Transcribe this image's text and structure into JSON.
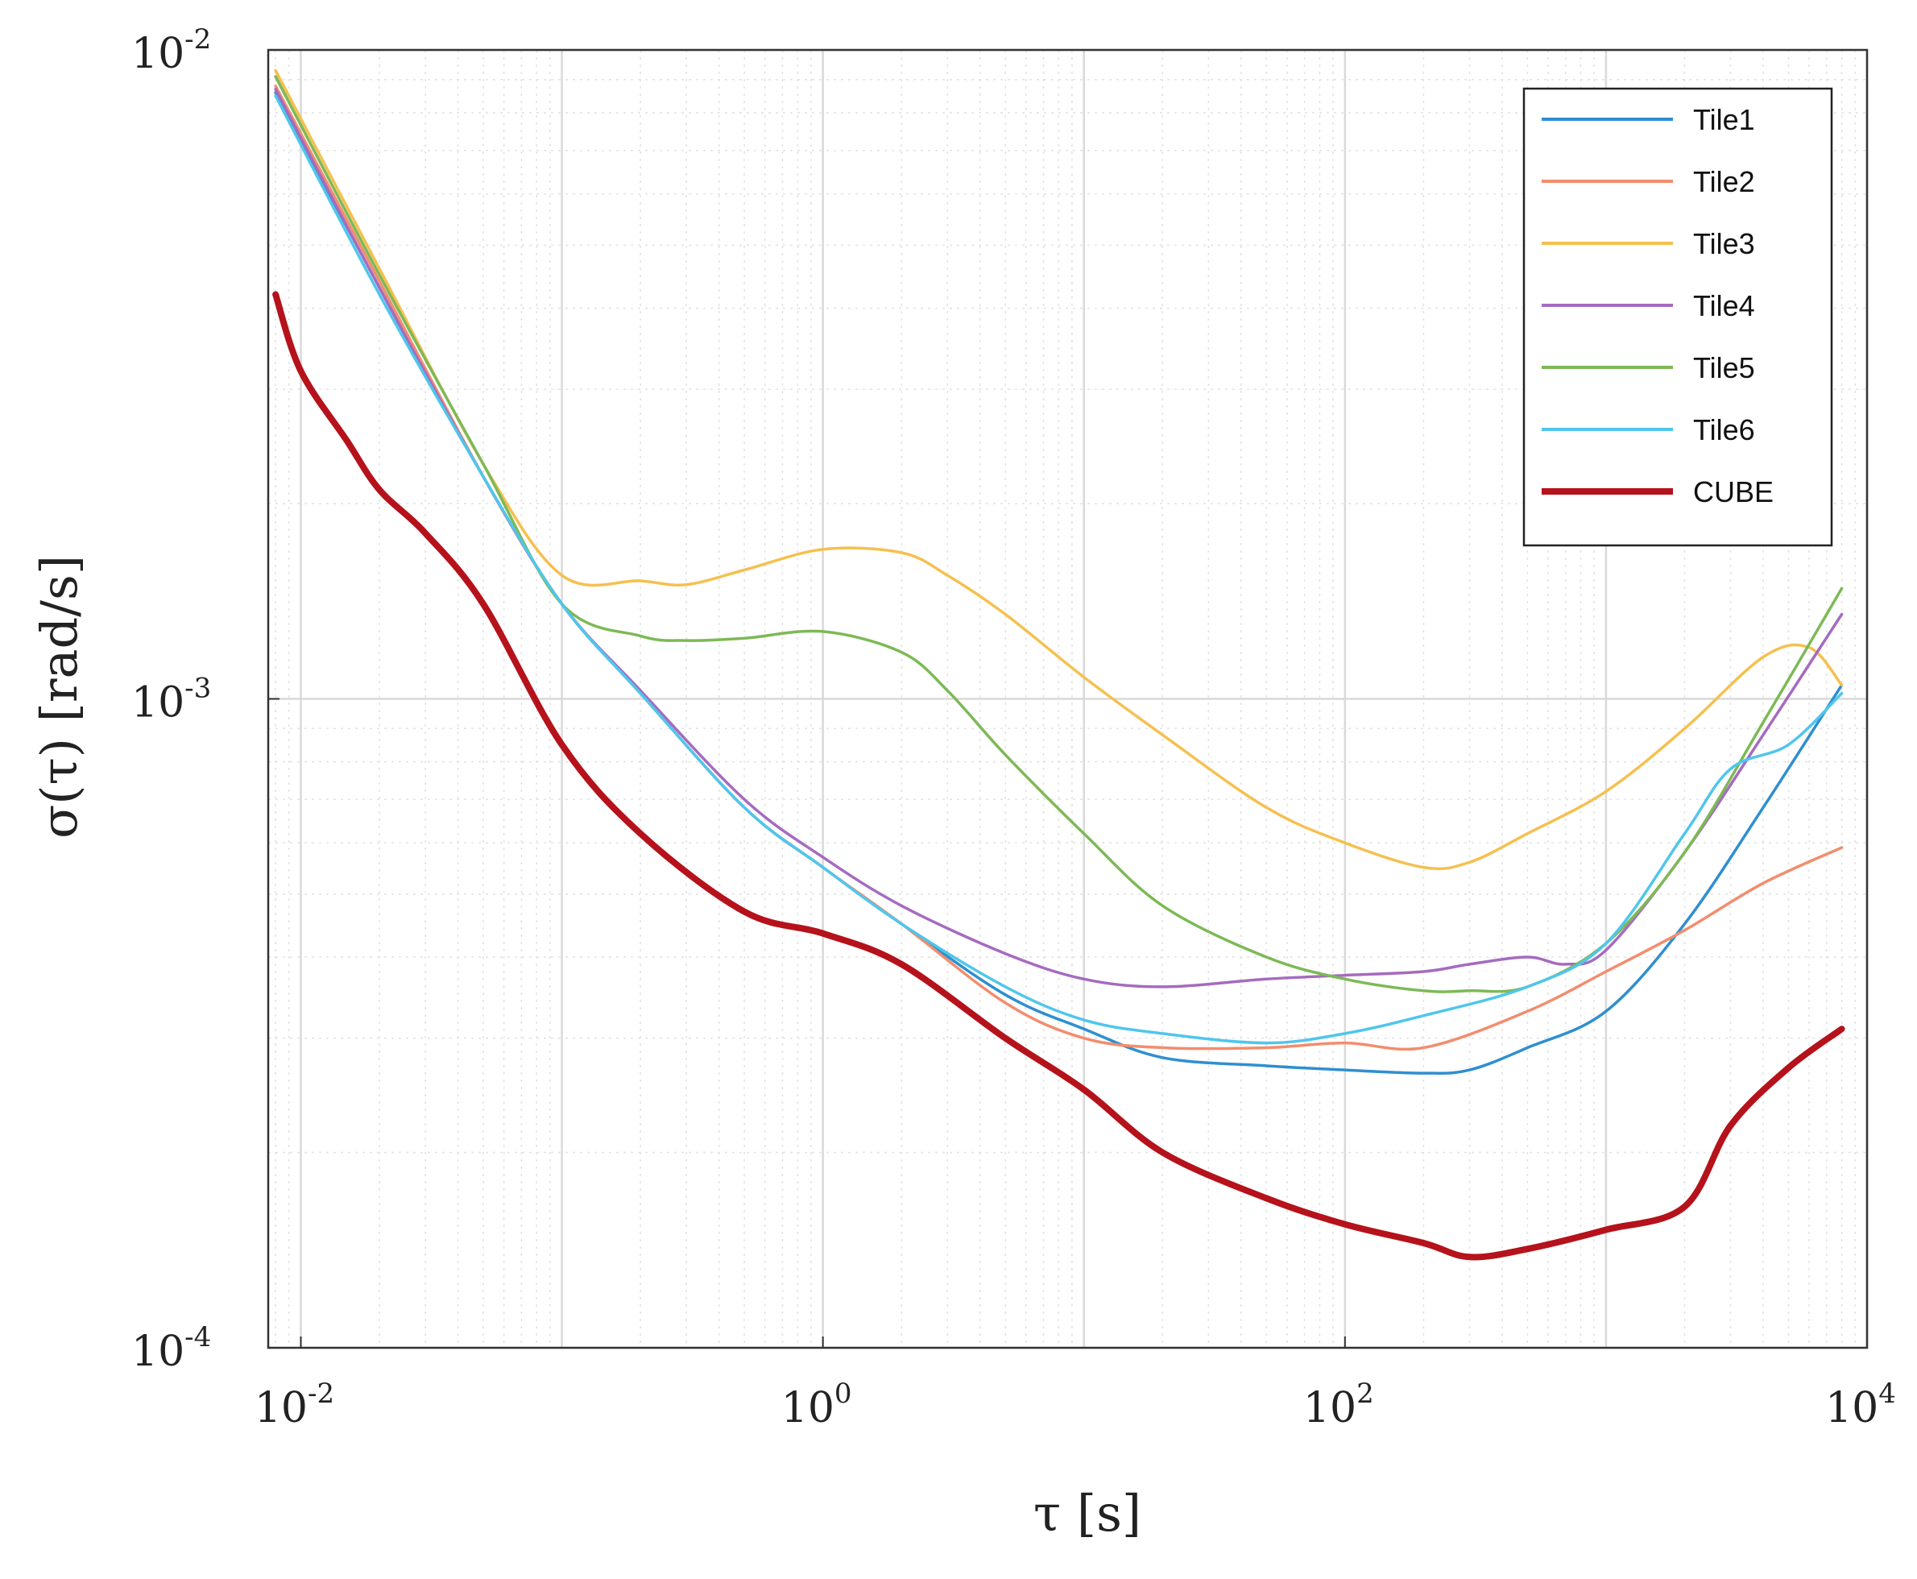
{
  "chart_data": {
    "type": "line",
    "scale": "log-log",
    "title": "",
    "xlabel": "τ [s]",
    "ylabel": "σ(τ) [rad/s]",
    "xlim": [
      0.0075,
      10000
    ],
    "ylim": [
      0.0001,
      0.01
    ],
    "grid": true,
    "legend_position": "top-right",
    "x_ticks": [
      {
        "base": "10",
        "exp": "-2",
        "value": 0.01
      },
      {
        "base": "10",
        "exp": "0",
        "value": 1
      },
      {
        "base": "10",
        "exp": "2",
        "value": 100
      },
      {
        "base": "10",
        "exp": "4",
        "value": 10000
      }
    ],
    "y_ticks": [
      {
        "base": "10",
        "exp": "-4",
        "value": 0.0001
      },
      {
        "base": "10",
        "exp": "-3",
        "value": 0.001
      },
      {
        "base": "10",
        "exp": "-2",
        "value": 0.01
      }
    ],
    "series": [
      {
        "name": "Tile1",
        "color": "#2E8FD0",
        "x": [
          0.008,
          0.02,
          0.05,
          0.1,
          0.2,
          0.5,
          1,
          2,
          5,
          10,
          20,
          50,
          100,
          200,
          300,
          500,
          1000,
          2000,
          4000,
          8000
        ],
        "y": [
          0.0086,
          0.0043,
          0.0022,
          0.0014,
          0.00102,
          0.00068,
          0.00055,
          0.00045,
          0.00035,
          0.00031,
          0.00028,
          0.000272,
          0.000268,
          0.000265,
          0.000268,
          0.00029,
          0.00033,
          0.00045,
          0.00068,
          0.00105
        ]
      },
      {
        "name": "Tile2",
        "color": "#F28D6E",
        "x": [
          0.008,
          0.02,
          0.05,
          0.1,
          0.2,
          0.5,
          1,
          2,
          5,
          10,
          20,
          50,
          100,
          200,
          500,
          1000,
          2000,
          4000,
          8000
        ],
        "y": [
          0.0088,
          0.0044,
          0.0022,
          0.0014,
          0.00102,
          0.00068,
          0.00055,
          0.00045,
          0.00034,
          0.0003,
          0.00029,
          0.00029,
          0.000295,
          0.00029,
          0.00033,
          0.00038,
          0.00044,
          0.00052,
          0.00059
        ]
      },
      {
        "name": "Tile3",
        "color": "#F5C04F",
        "x": [
          0.008,
          0.02,
          0.05,
          0.1,
          0.2,
          0.3,
          0.5,
          1,
          2,
          3,
          5,
          10,
          20,
          50,
          100,
          200,
          300,
          500,
          1000,
          2000,
          4000,
          6000,
          8000
        ],
        "y": [
          0.0093,
          0.0046,
          0.0023,
          0.00155,
          0.00152,
          0.0015,
          0.00158,
          0.0017,
          0.00168,
          0.00155,
          0.00135,
          0.00108,
          0.00088,
          0.00068,
          0.0006,
          0.00055,
          0.00056,
          0.00062,
          0.00072,
          0.0009,
          0.00116,
          0.0012,
          0.00105
        ]
      },
      {
        "name": "Tile4",
        "color": "#A56BBF",
        "x": [
          0.008,
          0.02,
          0.05,
          0.1,
          0.2,
          0.5,
          1,
          2,
          5,
          10,
          20,
          50,
          100,
          200,
          300,
          500,
          700,
          1000,
          2000,
          4000,
          8000
        ],
        "y": [
          0.0087,
          0.0043,
          0.0022,
          0.0014,
          0.00103,
          0.0007,
          0.00057,
          0.00048,
          0.000405,
          0.00037,
          0.00036,
          0.00037,
          0.000375,
          0.00038,
          0.00039,
          0.0004,
          0.00039,
          0.00041,
          0.00058,
          0.00088,
          0.00135
        ]
      },
      {
        "name": "Tile5",
        "color": "#7DB956",
        "x": [
          0.008,
          0.02,
          0.05,
          0.1,
          0.2,
          0.3,
          0.5,
          1,
          2,
          3,
          5,
          10,
          20,
          50,
          100,
          200,
          300,
          500,
          1000,
          2000,
          4000,
          8000
        ],
        "y": [
          0.0091,
          0.0045,
          0.0023,
          0.0014,
          0.00125,
          0.00123,
          0.00124,
          0.00127,
          0.00118,
          0.00103,
          0.00082,
          0.00062,
          0.00048,
          0.0004,
          0.00037,
          0.000355,
          0.000355,
          0.00036,
          0.00042,
          0.00058,
          0.00092,
          0.00148
        ]
      },
      {
        "name": "Tile6",
        "color": "#4FC6EC",
        "x": [
          0.008,
          0.02,
          0.05,
          0.1,
          0.2,
          0.5,
          1,
          2,
          5,
          10,
          20,
          50,
          100,
          200,
          500,
          1000,
          2000,
          3000,
          5000,
          8000
        ],
        "y": [
          0.0085,
          0.0042,
          0.0022,
          0.0014,
          0.00102,
          0.00068,
          0.00055,
          0.00045,
          0.00036,
          0.00032,
          0.000305,
          0.000295,
          0.000305,
          0.000325,
          0.00036,
          0.00042,
          0.00062,
          0.00078,
          0.00085,
          0.00102
        ]
      },
      {
        "name": "CUBE",
        "color": "#B5121B",
        "x": [
          0.008,
          0.01,
          0.015,
          0.02,
          0.03,
          0.05,
          0.1,
          0.2,
          0.5,
          1,
          2,
          5,
          10,
          20,
          50,
          100,
          200,
          300,
          500,
          1000,
          2000,
          3000,
          5000,
          8000
        ],
        "y": [
          0.0042,
          0.0032,
          0.0025,
          0.0021,
          0.0018,
          0.0014,
          0.00085,
          0.00062,
          0.00047,
          0.000435,
          0.00039,
          0.0003,
          0.00025,
          0.0002,
          0.00017,
          0.000155,
          0.000145,
          0.000138,
          0.000142,
          0.000152,
          0.000165,
          0.00022,
          0.00027,
          0.00031
        ]
      }
    ]
  }
}
